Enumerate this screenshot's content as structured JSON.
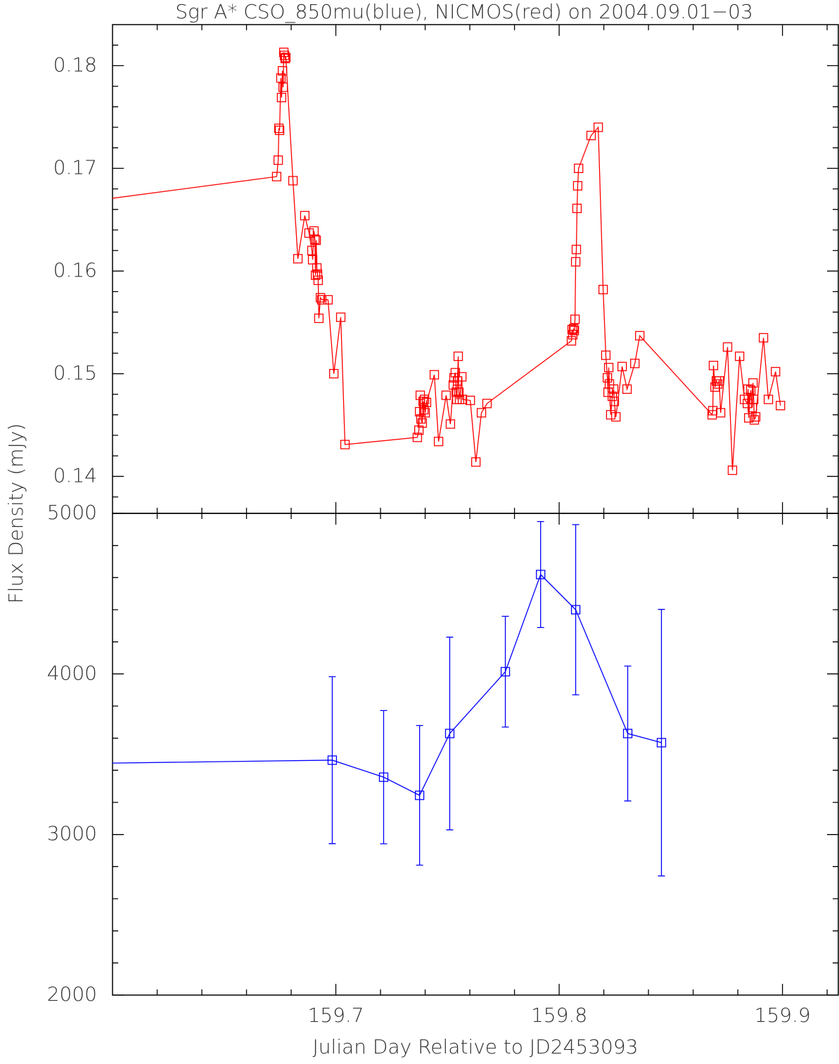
{
  "chart_data": [
    {
      "type": "line",
      "title": "Sgr A* CSO_850mu(blue), NICMOS(red) on 2004.09.01−03",
      "ylabel": "Flux Density (mJy)",
      "xlim": [
        159.6,
        159.925
      ],
      "ylim": [
        0.1364,
        0.184
      ],
      "xticks": [
        159.7,
        159.8,
        159.9
      ],
      "minor_xticks": [
        159.62,
        159.64,
        159.66,
        159.68,
        159.72,
        159.74,
        159.76,
        159.78,
        159.82,
        159.84,
        159.86,
        159.88,
        159.92
      ],
      "yticks": [
        0.14,
        0.15,
        0.16,
        0.17,
        0.18
      ],
      "minor_yticks": [
        0.138,
        0.142,
        0.144,
        0.146,
        0.148,
        0.152,
        0.154,
        0.156,
        0.158,
        0.162,
        0.164,
        0.166,
        0.168,
        0.172,
        0.174,
        0.176,
        0.178,
        0.182
      ],
      "x": [
        159.59,
        159.6735,
        159.6742,
        159.6745,
        159.6748,
        159.6754,
        159.6757,
        159.6761,
        159.6764,
        159.6767,
        159.677,
        159.6773,
        159.6776,
        159.6808,
        159.683,
        159.6861,
        159.688,
        159.6893,
        159.6896,
        159.6902,
        159.6906,
        159.6909,
        159.6912,
        159.6915,
        159.6918,
        159.6921,
        159.6924,
        159.6931,
        159.6937,
        159.6965,
        159.6991,
        159.7022,
        159.7041,
        159.7365,
        159.7372,
        159.7375,
        159.7378,
        159.7381,
        159.7387,
        159.7391,
        159.7394,
        159.7397,
        159.74,
        159.7406,
        159.7441,
        159.746,
        159.7494,
        159.7513,
        159.7526,
        159.7529,
        159.7535,
        159.7539,
        159.7542,
        159.7545,
        159.7548,
        159.7551,
        159.7554,
        159.7564,
        159.7567,
        159.7602,
        159.7627,
        159.7652,
        159.7677,
        159.8055,
        159.8058,
        159.8061,
        159.8065,
        159.8068,
        159.8071,
        159.8074,
        159.8077,
        159.808,
        159.8083,
        159.8087,
        159.8143,
        159.8175,
        159.8197,
        159.8209,
        159.8216,
        159.8219,
        159.8222,
        159.8225,
        159.8231,
        159.8238,
        159.8244,
        159.8247,
        159.8254,
        159.8282,
        159.8304,
        159.8339,
        159.8361,
        159.8685,
        159.8688,
        159.8691,
        159.8698,
        159.8704,
        159.871,
        159.8717,
        159.8723,
        159.8754,
        159.8776,
        159.8808,
        159.883,
        159.8843,
        159.8846,
        159.8849,
        159.8858,
        159.8865,
        159.8868,
        159.8871,
        159.8874,
        159.888,
        159.8915,
        159.8937,
        159.8969,
        159.8991
      ],
      "series": [
        {
          "color": "#ff0000",
          "values": [
            0.1668,
            0.1692,
            0.1708,
            0.1739,
            0.1737,
            0.1788,
            0.1769,
            0.1795,
            0.1779,
            0.1813,
            0.181,
            0.1807,
            0.1808,
            0.1688,
            0.1612,
            0.1654,
            0.1637,
            0.162,
            0.1611,
            0.1639,
            0.1631,
            0.1596,
            0.163,
            0.1603,
            0.1597,
            0.1591,
            0.1554,
            0.1574,
            0.1572,
            0.1572,
            0.15,
            0.1555,
            0.1431,
            0.1438,
            0.1445,
            0.1463,
            0.1479,
            0.1456,
            0.1452,
            0.1473,
            0.1465,
            0.1475,
            0.1462,
            0.1472,
            0.1499,
            0.1434,
            0.1479,
            0.1451,
            0.1489,
            0.1496,
            0.1501,
            0.1482,
            0.1475,
            0.1493,
            0.1517,
            0.1482,
            0.1475,
            0.1497,
            0.1475,
            0.1474,
            0.1414,
            0.1462,
            0.1471,
            0.1532,
            0.1543,
            0.1538,
            0.1544,
            0.1542,
            0.1553,
            0.1609,
            0.1621,
            0.1661,
            0.1683,
            0.17,
            0.1732,
            0.174,
            0.1582,
            0.1518,
            0.1496,
            0.1482,
            0.1506,
            0.149,
            0.146,
            0.1478,
            0.1485,
            0.1473,
            0.1458,
            0.1507,
            0.1485,
            0.151,
            0.1537,
            0.146,
            0.1464,
            0.1508,
            0.1487,
            0.1493,
            0.149,
            0.1493,
            0.1462,
            0.1526,
            0.1406,
            0.1517,
            0.1475,
            0.1471,
            0.1485,
            0.1457,
            0.1484,
            0.1467,
            0.1491,
            0.1475,
            0.1455,
            0.1458,
            0.1535,
            0.1475,
            0.1502,
            0.1469
          ]
        }
      ]
    },
    {
      "type": "line",
      "xlabel": "Julian Day Relative to JD2453093",
      "xlim": [
        159.6,
        159.925
      ],
      "ylim": [
        2000,
        5000
      ],
      "xticks": [
        159.7,
        159.8,
        159.9
      ],
      "minor_xticks": [
        159.62,
        159.64,
        159.66,
        159.68,
        159.72,
        159.74,
        159.76,
        159.78,
        159.82,
        159.84,
        159.86,
        159.88,
        159.92
      ],
      "yticks": [
        2000,
        3000,
        4000,
        5000
      ],
      "minor_yticks": [
        2200,
        2400,
        2600,
        2800,
        3200,
        3400,
        3600,
        3800,
        4200,
        4400,
        4600,
        4800
      ],
      "x": [
        159.59,
        159.6984,
        159.7214,
        159.7375,
        159.751,
        159.7759,
        159.7917,
        159.8074,
        159.8307,
        159.8458
      ],
      "series": [
        {
          "color": "#0000ff",
          "values": [
            3443,
            3463,
            3357,
            3244,
            3629,
            4014,
            4619,
            4400,
            3629,
            3572
          ],
          "errors": [
            0,
            520,
            415,
            435,
            600,
            345,
            330,
            530,
            420,
            830
          ]
        }
      ]
    }
  ]
}
